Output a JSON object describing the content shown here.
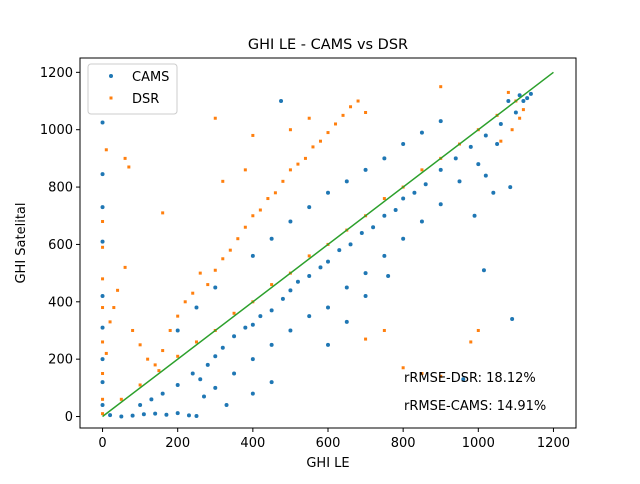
{
  "chart_data": {
    "type": "scatter",
    "title": "GHI LE - CAMS vs DSR",
    "xlabel": "GHI LE",
    "ylabel": "GHI Satelital",
    "xlim": [
      -60,
      1260
    ],
    "ylim": [
      -40,
      1250
    ],
    "xticks": [
      0,
      200,
      400,
      600,
      800,
      1000,
      1200
    ],
    "yticks": [
      0,
      200,
      400,
      600,
      800,
      1000,
      1200
    ],
    "grid": false,
    "legend_position": "top-left",
    "series": [
      {
        "name": "CAMS",
        "color": "#1f77b4",
        "marker": "circle",
        "points": [
          [
            0,
            1025
          ],
          [
            0,
            845
          ],
          [
            0,
            730
          ],
          [
            0,
            610
          ],
          [
            0,
            420
          ],
          [
            0,
            310
          ],
          [
            0,
            200
          ],
          [
            0,
            120
          ],
          [
            0,
            40
          ],
          [
            20,
            5
          ],
          [
            50,
            0
          ],
          [
            80,
            3
          ],
          [
            110,
            8
          ],
          [
            140,
            10
          ],
          [
            170,
            6
          ],
          [
            200,
            12
          ],
          [
            230,
            4
          ],
          [
            250,
            2
          ],
          [
            100,
            40
          ],
          [
            130,
            60
          ],
          [
            160,
            80
          ],
          [
            200,
            110
          ],
          [
            240,
            150
          ],
          [
            260,
            130
          ],
          [
            280,
            180
          ],
          [
            300,
            210
          ],
          [
            320,
            240
          ],
          [
            350,
            280
          ],
          [
            380,
            310
          ],
          [
            400,
            320
          ],
          [
            420,
            350
          ],
          [
            450,
            370
          ],
          [
            480,
            410
          ],
          [
            500,
            440
          ],
          [
            520,
            470
          ],
          [
            550,
            490
          ],
          [
            580,
            520
          ],
          [
            600,
            540
          ],
          [
            630,
            580
          ],
          [
            660,
            600
          ],
          [
            690,
            640
          ],
          [
            720,
            660
          ],
          [
            750,
            700
          ],
          [
            780,
            720
          ],
          [
            800,
            760
          ],
          [
            830,
            780
          ],
          [
            860,
            810
          ],
          [
            900,
            860
          ],
          [
            940,
            900
          ],
          [
            980,
            940
          ],
          [
            1020,
            980
          ],
          [
            1060,
            1020
          ],
          [
            1100,
            1060
          ],
          [
            1120,
            1100
          ],
          [
            1140,
            1125
          ],
          [
            1130,
            1110
          ],
          [
            1110,
            1120
          ],
          [
            1080,
            1100
          ],
          [
            300,
            100
          ],
          [
            350,
            150
          ],
          [
            400,
            200
          ],
          [
            450,
            250
          ],
          [
            500,
            300
          ],
          [
            550,
            350
          ],
          [
            600,
            380
          ],
          [
            650,
            450
          ],
          [
            700,
            500
          ],
          [
            750,
            560
          ],
          [
            800,
            620
          ],
          [
            850,
            680
          ],
          [
            900,
            740
          ],
          [
            950,
            820
          ],
          [
            1000,
            880
          ],
          [
            1050,
            950
          ],
          [
            650,
            330
          ],
          [
            600,
            250
          ],
          [
            700,
            420
          ],
          [
            760,
            490
          ],
          [
            200,
            300
          ],
          [
            250,
            380
          ],
          [
            300,
            450
          ],
          [
            400,
            560
          ],
          [
            450,
            620
          ],
          [
            500,
            680
          ],
          [
            550,
            730
          ],
          [
            600,
            780
          ],
          [
            650,
            820
          ],
          [
            700,
            860
          ],
          [
            750,
            900
          ],
          [
            800,
            950
          ],
          [
            850,
            990
          ],
          [
            900,
            1030
          ],
          [
            475,
            1100
          ],
          [
            1020,
            840
          ],
          [
            1085,
            800
          ],
          [
            1090,
            340
          ],
          [
            960,
            130
          ],
          [
            1015,
            510
          ],
          [
            1040,
            780
          ],
          [
            990,
            700
          ],
          [
            400,
            80
          ],
          [
            450,
            120
          ],
          [
            330,
            40
          ],
          [
            270,
            70
          ]
        ]
      },
      {
        "name": "DSR",
        "color": "#ff7f0e",
        "marker": "square",
        "points": [
          [
            0,
            680
          ],
          [
            0,
            590
          ],
          [
            0,
            480
          ],
          [
            0,
            380
          ],
          [
            0,
            260
          ],
          [
            0,
            150
          ],
          [
            0,
            60
          ],
          [
            0,
            10
          ],
          [
            10,
            220
          ],
          [
            20,
            330
          ],
          [
            30,
            380
          ],
          [
            40,
            440
          ],
          [
            60,
            520
          ],
          [
            80,
            300
          ],
          [
            100,
            250
          ],
          [
            120,
            200
          ],
          [
            140,
            180
          ],
          [
            160,
            230
          ],
          [
            180,
            300
          ],
          [
            200,
            350
          ],
          [
            220,
            400
          ],
          [
            240,
            430
          ],
          [
            260,
            500
          ],
          [
            280,
            460
          ],
          [
            300,
            510
          ],
          [
            320,
            550
          ],
          [
            340,
            580
          ],
          [
            360,
            620
          ],
          [
            380,
            660
          ],
          [
            400,
            700
          ],
          [
            420,
            720
          ],
          [
            440,
            760
          ],
          [
            460,
            780
          ],
          [
            480,
            820
          ],
          [
            500,
            860
          ],
          [
            520,
            880
          ],
          [
            540,
            900
          ],
          [
            560,
            940
          ],
          [
            580,
            960
          ],
          [
            600,
            990
          ],
          [
            620,
            1020
          ],
          [
            640,
            1050
          ],
          [
            660,
            1080
          ],
          [
            680,
            1100
          ],
          [
            50,
            60
          ],
          [
            100,
            110
          ],
          [
            150,
            160
          ],
          [
            200,
            210
          ],
          [
            250,
            260
          ],
          [
            300,
            300
          ],
          [
            350,
            360
          ],
          [
            400,
            400
          ],
          [
            450,
            460
          ],
          [
            500,
            500
          ],
          [
            550,
            560
          ],
          [
            600,
            600
          ],
          [
            650,
            650
          ],
          [
            700,
            700
          ],
          [
            750,
            760
          ],
          [
            800,
            800
          ],
          [
            850,
            860
          ],
          [
            900,
            900
          ],
          [
            950,
            950
          ],
          [
            1000,
            1000
          ],
          [
            1050,
            1050
          ],
          [
            1100,
            1100
          ],
          [
            1120,
            1070
          ],
          [
            1110,
            1040
          ],
          [
            1090,
            1000
          ],
          [
            1060,
            960
          ],
          [
            10,
            930
          ],
          [
            300,
            1040
          ],
          [
            400,
            980
          ],
          [
            500,
            1000
          ],
          [
            550,
            1040
          ],
          [
            1080,
            1130
          ],
          [
            800,
            170
          ],
          [
            850,
            150
          ],
          [
            900,
            140
          ],
          [
            980,
            260
          ],
          [
            1000,
            300
          ],
          [
            700,
            270
          ],
          [
            750,
            300
          ],
          [
            60,
            900
          ],
          [
            70,
            870
          ],
          [
            160,
            710
          ],
          [
            320,
            820
          ],
          [
            380,
            860
          ],
          [
            700,
            1060
          ],
          [
            900,
            1150
          ]
        ]
      },
      {
        "name": "",
        "color": "#2ca02c",
        "marker": "line",
        "points": [
          [
            0,
            0
          ],
          [
            1200,
            1200
          ]
        ]
      }
    ],
    "annotations": [
      "rRMSE-DSR: 18.12%",
      "rRMSE-CAMS: 14.91%"
    ]
  }
}
